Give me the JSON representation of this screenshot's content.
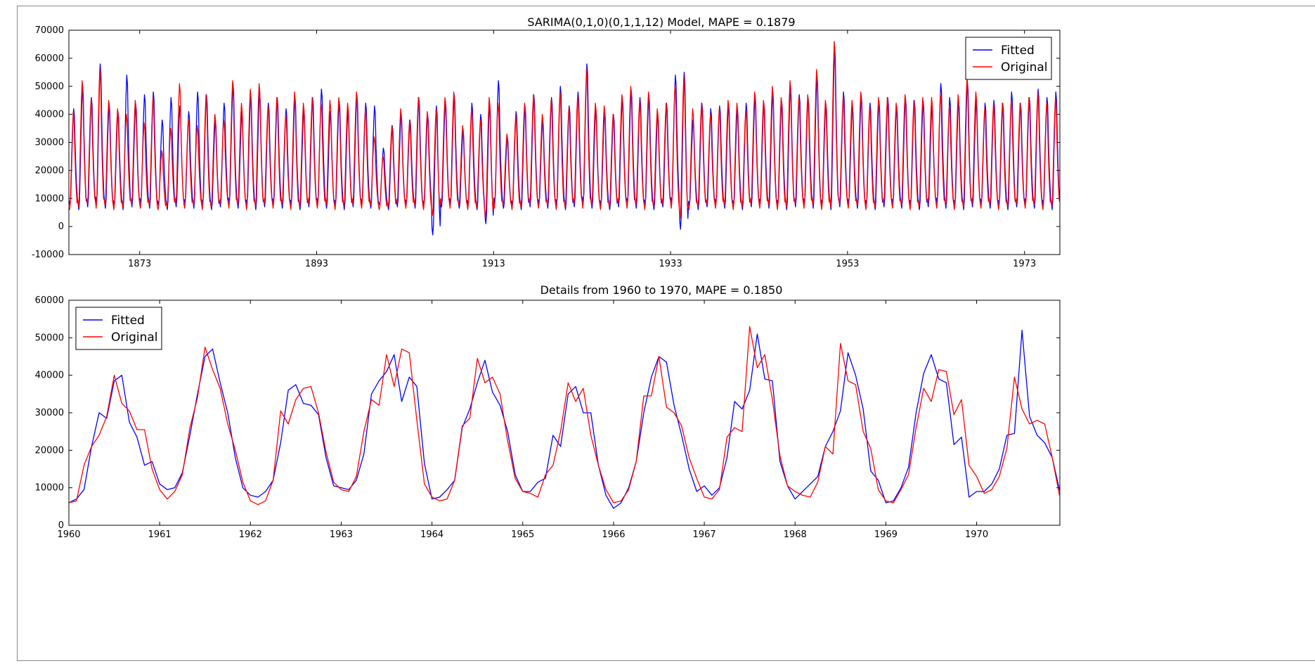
{
  "chart_data": [
    {
      "type": "line",
      "title": "SARIMA(0,1,0)(0,1,1,12) Model, MAPE = 0.1879",
      "xlabel": "",
      "ylabel": "",
      "x_range": [
        1865,
        1977
      ],
      "ylim": [
        -10000,
        70000
      ],
      "x_ticks": [
        1873,
        1893,
        1913,
        1933,
        1953,
        1973
      ],
      "y_ticks": [
        -10000,
        0,
        10000,
        20000,
        30000,
        40000,
        50000,
        60000,
        70000
      ],
      "grid": false,
      "legend_position": "top-right",
      "seasonal_pattern": {
        "period_months": 12,
        "trough_month_index": 1,
        "typical_trough": 6000,
        "typical_peak": 45000
      },
      "yearly_peaks": {
        "x": [
          1865,
          1866,
          1867,
          1868,
          1869,
          1870,
          1871,
          1872,
          1873,
          1874,
          1875,
          1876,
          1877,
          1878,
          1879,
          1880,
          1881,
          1882,
          1883,
          1884,
          1885,
          1886,
          1887,
          1888,
          1889,
          1890,
          1891,
          1892,
          1893,
          1894,
          1895,
          1896,
          1897,
          1898,
          1899,
          1900,
          1901,
          1902,
          1903,
          1904,
          1905,
          1906,
          1907,
          1908,
          1909,
          1910,
          1911,
          1912,
          1913,
          1914,
          1915,
          1916,
          1917,
          1918,
          1919,
          1920,
          1921,
          1922,
          1923,
          1924,
          1925,
          1926,
          1927,
          1928,
          1929,
          1930,
          1931,
          1932,
          1933,
          1934,
          1935,
          1936,
          1937,
          1938,
          1939,
          1940,
          1941,
          1942,
          1943,
          1944,
          1945,
          1946,
          1947,
          1948,
          1949,
          1950,
          1951,
          1952,
          1953,
          1954,
          1955,
          1956,
          1957,
          1958,
          1959,
          1960,
          1961,
          1962,
          1963,
          1964,
          1965,
          1966,
          1967,
          1968,
          1969,
          1970,
          1971,
          1972,
          1973,
          1974,
          1975,
          1976
        ],
        "original": [
          41000,
          52000,
          45000,
          57000,
          45000,
          42000,
          40000,
          45000,
          37000,
          46000,
          27000,
          35000,
          51000,
          38000,
          36000,
          47000,
          40000,
          38000,
          52000,
          44000,
          49000,
          51000,
          43000,
          46000,
          40000,
          48000,
          44000,
          46000,
          44000,
          45000,
          46000,
          44000,
          48000,
          42000,
          32000,
          25000,
          36000,
          42000,
          38000,
          46000,
          41000,
          42000,
          46000,
          48000,
          36000,
          42000,
          38000,
          46000,
          44000,
          33000,
          40000,
          44000,
          47000,
          40000,
          45000,
          48000,
          42000,
          47000,
          56000,
          44000,
          43000,
          40000,
          47000,
          50000,
          45000,
          48000,
          42000,
          44000,
          50000,
          54000,
          42000,
          44000,
          40000,
          42000,
          45000,
          44000,
          42000,
          48000,
          45000,
          50000,
          46000,
          52000,
          46000,
          47000,
          56000,
          45000,
          66000,
          46000,
          45000,
          48000,
          43000,
          46000,
          46000,
          44000,
          47000,
          45000,
          46000,
          46000,
          47000,
          43000,
          47000,
          53000,
          48000,
          42000,
          44000,
          44000,
          45000,
          44000,
          46000,
          48000,
          44000,
          46000
        ],
        "fitted": [
          42000,
          50000,
          46000,
          58000,
          44000,
          41000,
          54000,
          44000,
          47000,
          48000,
          38000,
          46000,
          43000,
          41000,
          48000,
          47000,
          38000,
          44000,
          51000,
          41000,
          47000,
          48000,
          44000,
          46000,
          42000,
          46000,
          42000,
          46000,
          49000,
          41000,
          45000,
          42000,
          47000,
          44000,
          43000,
          28000,
          36000,
          40000,
          38000,
          46000,
          40000,
          43000,
          45000,
          47000,
          34000,
          44000,
          40000,
          44000,
          52000,
          32000,
          41000,
          43000,
          47000,
          38000,
          46000,
          50000,
          43000,
          48000,
          58000,
          42000,
          41000,
          40000,
          46000,
          49000,
          46000,
          47000,
          40000,
          44000,
          54000,
          55000,
          38000,
          44000,
          42000,
          43000,
          44000,
          42000,
          44000,
          47000,
          44000,
          48000,
          45000,
          50000,
          47000,
          46000,
          54000,
          44000,
          64000,
          48000,
          43000,
          47000,
          44000,
          45000,
          46000,
          43000,
          46000,
          45000,
          45000,
          43000,
          51000,
          46000,
          45000,
          52000,
          45000,
          44000,
          45000,
          44000,
          48000,
          44000,
          46000,
          49000,
          46000,
          48000
        ]
      },
      "yearly_troughs": {
        "x": [
          1906,
          1912,
          1934
        ],
        "original": [
          4000,
          3000,
          3000
        ],
        "fitted": [
          -3000,
          1000,
          -1000
        ]
      },
      "series": [
        {
          "name": "Fitted",
          "color": "#0000ff"
        },
        {
          "name": "Original",
          "color": "#ff0000"
        }
      ]
    },
    {
      "type": "line",
      "title": "Details from 1960 to 1970, MAPE = 0.1850",
      "xlabel": "",
      "ylabel": "",
      "x_range": [
        1960,
        1970.917
      ],
      "ylim": [
        0,
        60000
      ],
      "x_ticks": [
        1960,
        1961,
        1962,
        1963,
        1964,
        1965,
        1966,
        1967,
        1968,
        1969,
        1970
      ],
      "y_ticks": [
        0,
        10000,
        20000,
        30000,
        40000,
        50000,
        60000
      ],
      "grid": false,
      "legend_position": "top-left",
      "x_monthly_start": "1960-01",
      "series": [
        {
          "name": "Fitted",
          "color": "#0000ff",
          "values": [
            6000,
            7000,
            9500,
            21000,
            30000,
            28500,
            38500,
            40000,
            27500,
            23500,
            16000,
            17000,
            11000,
            9500,
            10000,
            14000,
            24000,
            35000,
            45000,
            47000,
            38000,
            30000,
            18000,
            10000,
            8000,
            7500,
            9000,
            12000,
            22000,
            36000,
            37500,
            32500,
            32000,
            29500,
            18000,
            10500,
            10000,
            9500,
            12000,
            19000,
            35000,
            38500,
            41000,
            45500,
            33000,
            39500,
            37000,
            16500,
            7000,
            7500,
            9500,
            12000,
            26000,
            31000,
            38000,
            44000,
            35500,
            32000,
            25000,
            13500,
            9000,
            9000,
            11500,
            12500,
            24000,
            21000,
            35000,
            37000,
            30000,
            30000,
            16000,
            8000,
            4500,
            6000,
            10000,
            17000,
            30000,
            39500,
            45000,
            43500,
            32000,
            24000,
            15000,
            9000,
            10500,
            8000,
            10000,
            18000,
            33000,
            31000,
            36000,
            51000,
            39000,
            38500,
            17000,
            10500,
            7000,
            9000,
            11000,
            13000,
            21000,
            25000,
            30500,
            46000,
            40000,
            31000,
            14500,
            12000,
            6000,
            6500,
            10000,
            15500,
            30000,
            40500,
            45500,
            39000,
            38000,
            21500,
            23500,
            7500,
            9000,
            9000,
            11000,
            15000,
            24000,
            24500,
            52000,
            29000,
            24000,
            22000,
            18000,
            9000
          ]
        },
        {
          "name": "Original",
          "color": "#ff0000",
          "values": [
            6000,
            6500,
            16000,
            21000,
            24000,
            29000,
            40000,
            32500,
            30500,
            25500,
            25500,
            15000,
            9500,
            7000,
            9000,
            13500,
            26000,
            34000,
            47500,
            41500,
            36500,
            27000,
            20000,
            11500,
            6500,
            5500,
            6500,
            12000,
            30500,
            27000,
            33500,
            36500,
            37000,
            30000,
            19500,
            11500,
            9500,
            9000,
            13000,
            25000,
            33500,
            32000,
            45500,
            37000,
            47000,
            46000,
            28000,
            11000,
            7500,
            6500,
            7000,
            12000,
            26500,
            28500,
            44500,
            38000,
            39500,
            35000,
            22500,
            12500,
            9000,
            8500,
            7500,
            13500,
            16000,
            25000,
            38000,
            33000,
            36500,
            24000,
            16000,
            9500,
            6000,
            6500,
            9500,
            17000,
            34500,
            34500,
            45000,
            31500,
            30000,
            26500,
            18000,
            12500,
            7500,
            7000,
            9500,
            23500,
            26000,
            25000,
            53000,
            42000,
            45500,
            33500,
            18500,
            10500,
            9000,
            8000,
            7500,
            11500,
            21000,
            19000,
            48500,
            38500,
            37500,
            25000,
            20500,
            9500,
            6500,
            6000,
            9500,
            13500,
            26000,
            36500,
            33000,
            41500,
            41000,
            29500,
            33500,
            16000,
            13000,
            8500,
            9500,
            13000,
            20500,
            39500,
            31000,
            27000,
            28000,
            27000,
            18000,
            7500
          ]
        }
      ]
    }
  ]
}
